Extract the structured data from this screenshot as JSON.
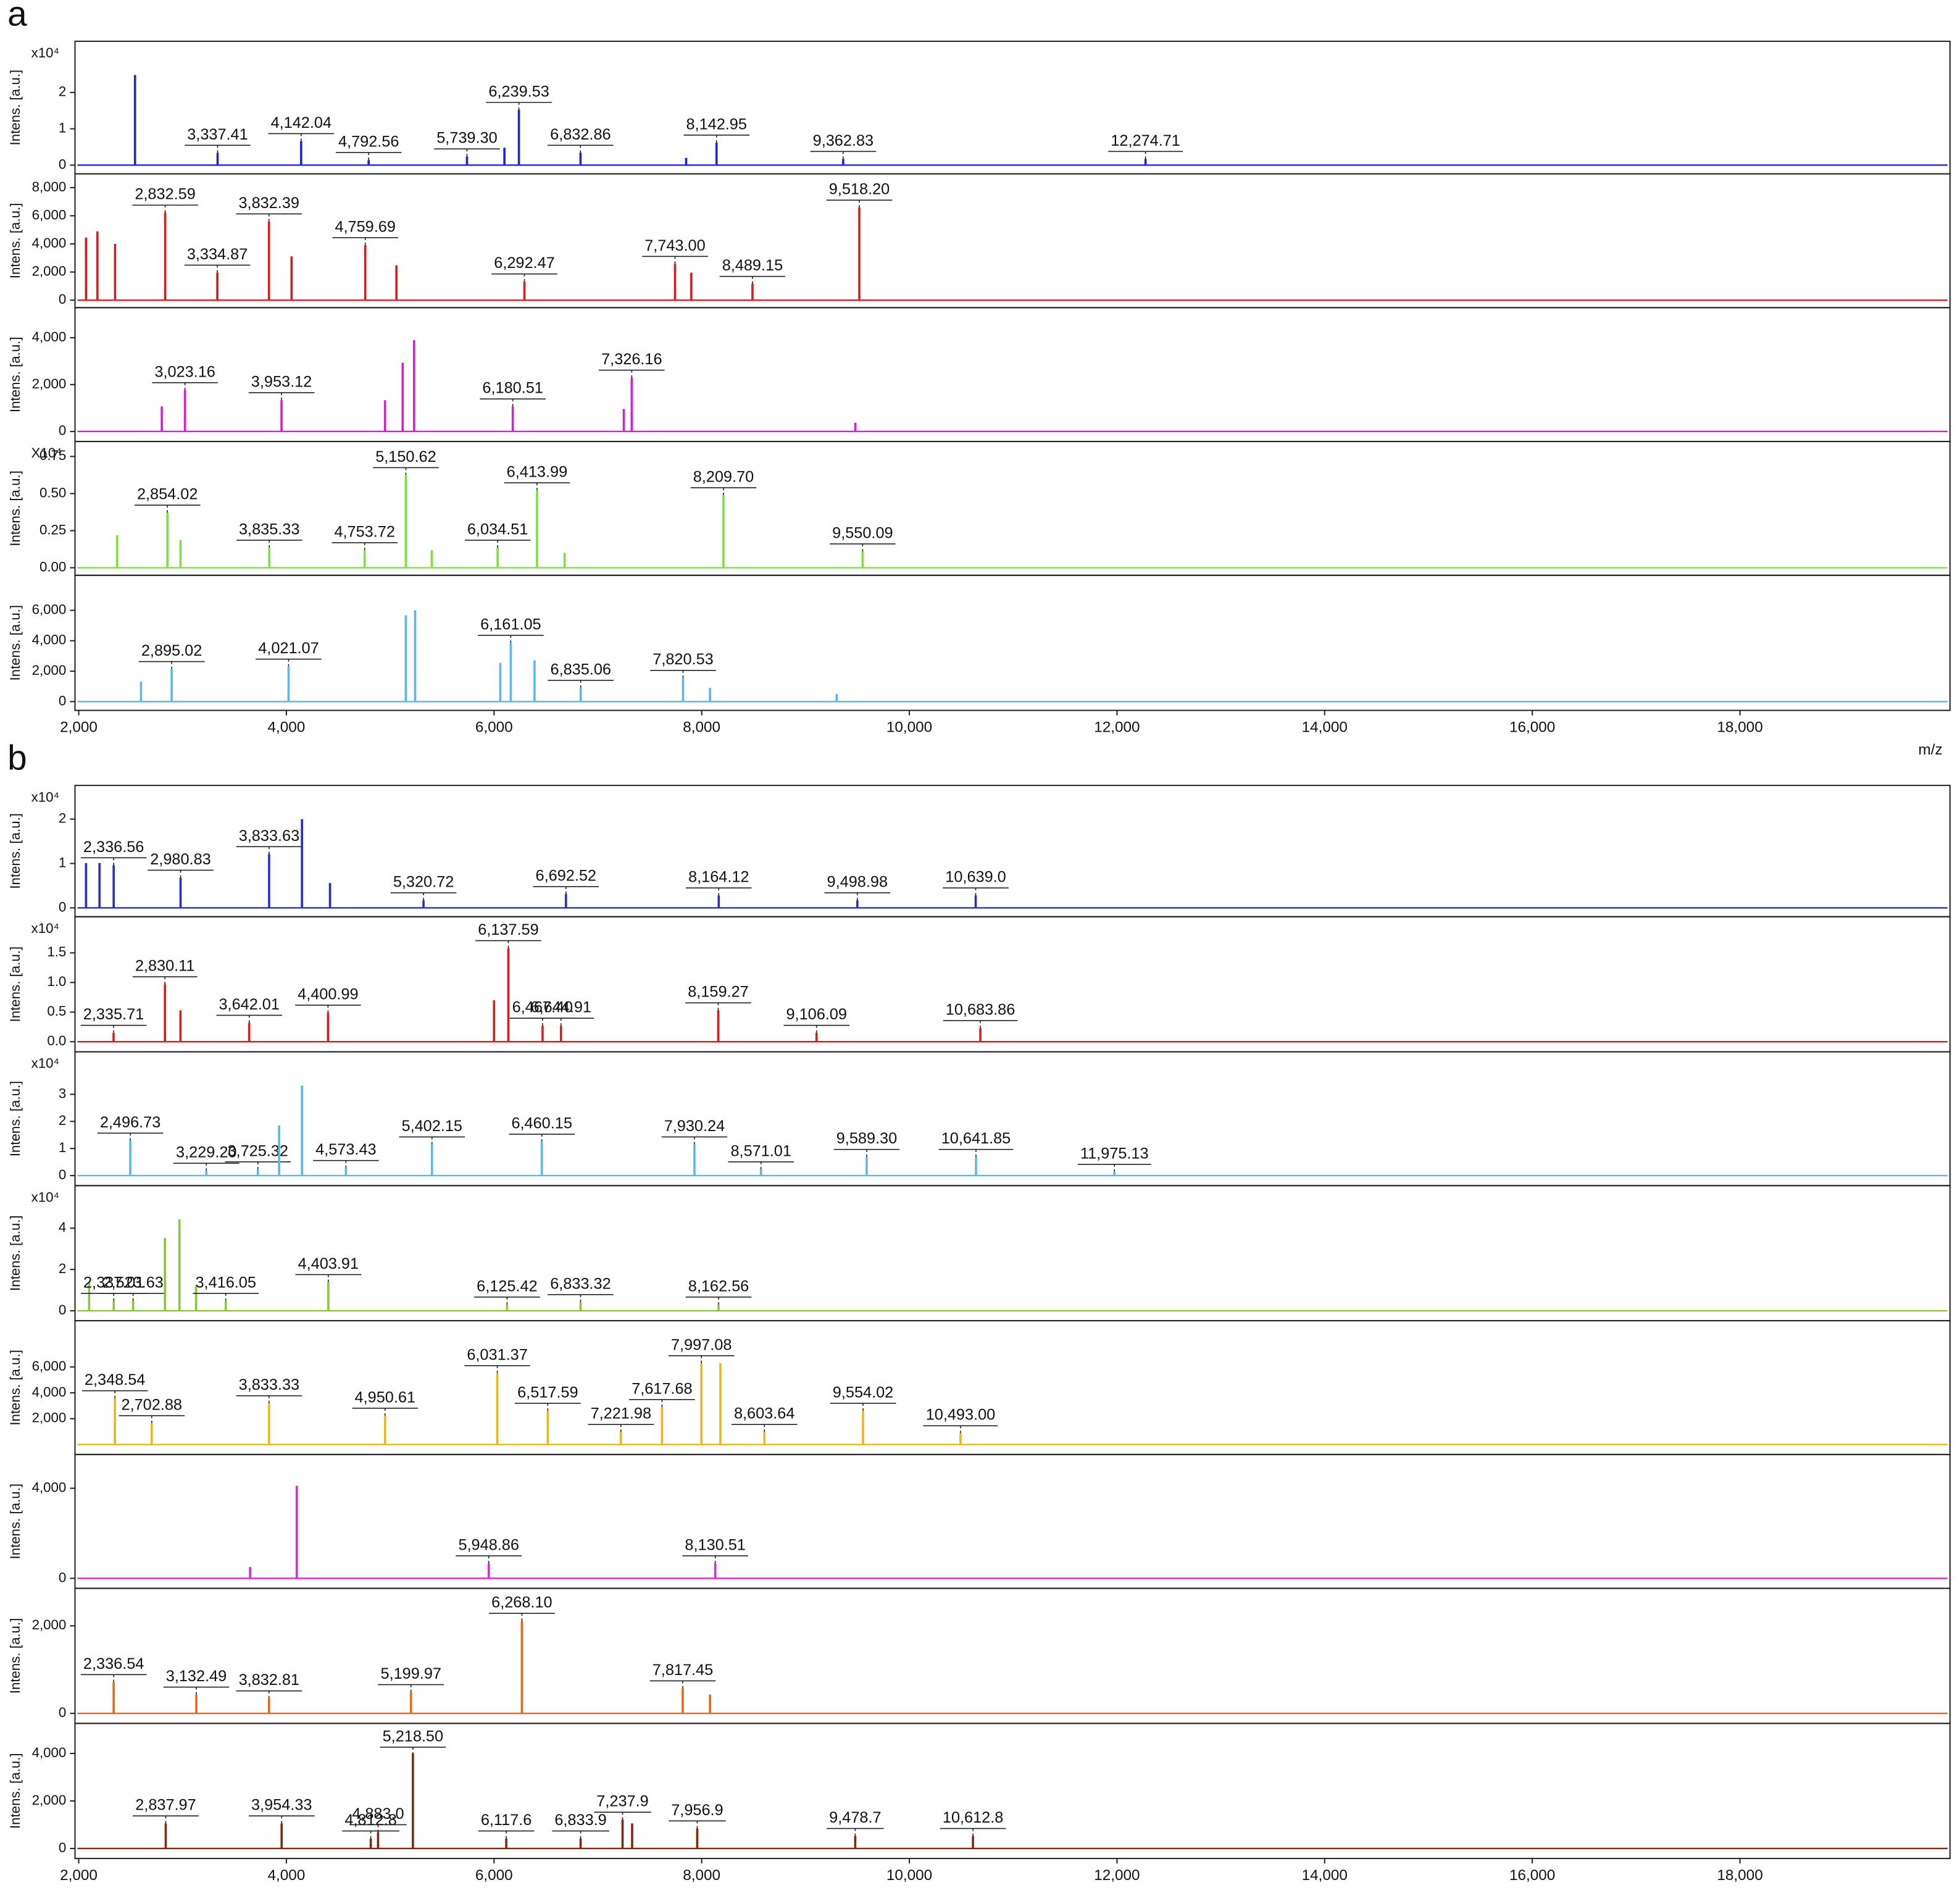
{
  "chart_data": [
    {
      "type": "spectrum",
      "panel_label": "a",
      "y_label": "Intens. [a.u.]",
      "y_multiplier": "x10⁴",
      "color": "#2323d2",
      "xlim": [
        1964,
        20023
      ],
      "ylim": [
        -0.24,
        3.41
      ],
      "yticks": [
        0,
        1,
        2
      ],
      "x": [
        2542,
        3337.41,
        4142.04,
        4792.56,
        5739.3,
        6100,
        6239.53,
        6832.86,
        7850,
        8142.95,
        9362.83,
        12274.71
      ],
      "values": [
        2.48,
        0.34,
        0.66,
        0.14,
        0.24,
        0.48,
        1.52,
        0.34,
        0.2,
        0.62,
        0.17,
        0.17
      ],
      "labels": [
        null,
        "3,337.41",
        "4,142.04",
        "4,792.56",
        "5,739.30",
        null,
        "6,239.53",
        "6,832.86",
        null,
        "8,142.95",
        "9,362.83",
        "12,274.71"
      ]
    },
    {
      "type": "spectrum",
      "y_label": "Intens. [a.u.]",
      "color": "#d31f1f",
      "xlim": [
        1964,
        20023
      ],
      "ylim": [
        -533,
        8980
      ],
      "yticks": [
        0,
        {
          "value": 2000,
          "label": "2,000"
        },
        {
          "value": 4000,
          "label": "4,000"
        },
        {
          "value": 6000,
          "label": "6,000"
        },
        {
          "value": 8000,
          "label": "8,000"
        }
      ],
      "x": [
        2070,
        2180,
        2350,
        2832.59,
        3334.87,
        3832.39,
        4050,
        4759.69,
        5060,
        6292.47,
        7743.0,
        7900,
        8489.15,
        9518.2
      ],
      "values": [
        4444,
        4889,
        4000,
        6222,
        1956,
        5600,
        3111,
        3911,
        2489,
        1333,
        2578,
        1956,
        1156,
        6578
      ],
      "labels": [
        null,
        null,
        null,
        "2,832.59",
        "3,334.87",
        "3,832.39",
        null,
        "4,759.69",
        null,
        "6,292.47",
        "7,743.00",
        null,
        "8,489.15",
        "9,518.20"
      ]
    },
    {
      "type": "spectrum",
      "y_label": "Intens. [a.u.]",
      "color": "#d420d4",
      "xlim": [
        1964,
        20023
      ],
      "ylim": [
        -427,
        5280
      ],
      "yticks": [
        0,
        {
          "value": 2000,
          "label": "2,000"
        },
        {
          "value": 4000,
          "label": "4,000"
        }
      ],
      "x": [
        2800,
        3023.16,
        3953.12,
        4950,
        5120,
        5230,
        6180.51,
        7250,
        7326.16,
        9480
      ],
      "values": [
        1067,
        1760,
        1333,
        1333,
        2933,
        3893,
        1067,
        960,
        2293,
        373
      ],
      "labels": [
        null,
        "3,023.16",
        "3,953.12",
        null,
        null,
        null,
        "6,180.51",
        null,
        "7,326.16",
        null
      ]
    },
    {
      "type": "spectrum",
      "y_label": "Intens. [a.u.]",
      "y_multiplier": "X10⁴",
      "color": "#7fe043",
      "xlim": [
        1964,
        20023
      ],
      "ylim": [
        -0.051,
        0.851
      ],
      "yticks": [
        {
          "value": 0,
          "label": "0.00"
        },
        0.25,
        {
          "value": 0.5,
          "label": "0.50"
        },
        0.75
      ],
      "x": [
        2370,
        2854.02,
        2980,
        3835.33,
        4753.72,
        5150.62,
        5400,
        6034.51,
        6413.99,
        6680,
        8209.7,
        9550.09
      ],
      "values": [
        0.219,
        0.371,
        0.185,
        0.135,
        0.118,
        0.624,
        0.118,
        0.135,
        0.522,
        0.101,
        0.489,
        0.11
      ],
      "labels": [
        null,
        "2,854.02",
        null,
        "3,835.33",
        "4,753.72",
        "5,150.62",
        null,
        "6,034.51",
        "6,413.99",
        null,
        "8,209.70",
        "9,550.09"
      ]
    },
    {
      "type": "spectrum",
      "y_label": "Intens. [a.u.]",
      "color": "#5bb9ea",
      "xlim": [
        1964,
        20023
      ],
      "ylim": [
        -575,
        8300
      ],
      "yticks": [
        0,
        {
          "value": 2000,
          "label": "2,000"
        },
        {
          "value": 4000,
          "label": "4,000"
        },
        {
          "value": 6000,
          "label": "6,000"
        }
      ],
      "xticks": [
        {
          "value": 2000,
          "label": "2,000"
        },
        {
          "value": 4000,
          "label": "4,000"
        },
        {
          "value": 6000,
          "label": "6,000"
        },
        {
          "value": 8000,
          "label": "8,000"
        },
        {
          "value": 10000,
          "label": "10,000"
        },
        {
          "value": 12000,
          "label": "12,000"
        },
        {
          "value": 14000,
          "label": "14,000"
        },
        {
          "value": 16000,
          "label": "16,000"
        },
        {
          "value": 18000,
          "label": "18,000"
        }
      ],
      "x_label": "m/z",
      "x": [
        2600,
        2895.02,
        4021.07,
        5150,
        5240,
        6060,
        6161.05,
        6390,
        6835.06,
        7820.53,
        8080,
        9300
      ],
      "values": [
        1315,
        2137,
        2301,
        5671,
        6000,
        2548,
        3863,
        2712,
        904,
        1561,
        904,
        493
      ],
      "labels": [
        null,
        "2,895.02",
        "4,021.07",
        null,
        null,
        null,
        "6,161.05",
        null,
        "6,835.06",
        "7,820.53",
        null,
        null
      ]
    },
    {
      "type": "spectrum",
      "panel_label": "b",
      "y_label": "Intens. [a.u.]",
      "y_multiplier": "x10⁴",
      "color": "#2b2bd2",
      "xlim": [
        1964,
        20023
      ],
      "ylim": [
        -0.2,
        2.76
      ],
      "yticks": [
        0,
        1,
        2
      ],
      "x": [
        2070,
        2200,
        2336.56,
        2980.83,
        3833.63,
        4150,
        4420,
        5320.72,
        6692.52,
        8164.12,
        9498.98,
        10639.0
      ],
      "values": [
        1.01,
        1.01,
        0.96,
        0.68,
        1.21,
        2.0,
        0.56,
        0.17,
        0.31,
        0.28,
        0.17,
        0.28
      ],
      "labels": [
        null,
        null,
        "2,336.56",
        "2,980.83",
        "3,833.63",
        null,
        null,
        "5,320.72",
        "6,692.52",
        "8,164.12",
        "9,498.98",
        "10,639.0"
      ]
    },
    {
      "type": "spectrum",
      "y_label": "Intens. [a.u.]",
      "y_multiplier": "x10⁴",
      "color": "#d52020",
      "xlim": [
        1964,
        20023
      ],
      "ylim": [
        -0.17,
        2.11
      ],
      "yticks": [
        {
          "value": 0,
          "label": "0.0"
        },
        0.5,
        {
          "value": 1,
          "label": "1.0"
        },
        1.5
      ],
      "x": [
        2335.71,
        2830.11,
        2980,
        3642.01,
        4400.99,
        6000,
        6137.59,
        6467.4,
        6644.91,
        8159.27,
        9106.09,
        10683.86
      ],
      "values": [
        0.15,
        0.97,
        0.53,
        0.32,
        0.49,
        0.7,
        1.58,
        0.27,
        0.27,
        0.53,
        0.15,
        0.23
      ],
      "labels": [
        "2,335.71",
        "2,830.11",
        null,
        "3,642.01",
        "4,400.99",
        null,
        "6,137.59",
        "6,467.40",
        "6,644.91",
        "8,159.27",
        "9,106.09",
        "10,683.86"
      ]
    },
    {
      "type": "spectrum",
      "y_label": "Intens. [a.u.]",
      "y_multiplier": "x10⁴",
      "color": "#5bb9ea",
      "xlim": [
        1964,
        20023
      ],
      "ylim": [
        -0.37,
        4.57
      ],
      "yticks": [
        0,
        1,
        2,
        3
      ],
      "x": [
        2496.73,
        3229.2,
        3725.32,
        3930,
        4150,
        4573.43,
        5402.15,
        6460.15,
        7930.24,
        8571.01,
        9589.3,
        10641.85,
        11975.13
      ],
      "values": [
        1.29,
        0.18,
        0.23,
        1.85,
        3.32,
        0.28,
        1.15,
        1.25,
        1.15,
        0.23,
        0.69,
        0.69,
        0.14
      ],
      "labels": [
        "2,496.73",
        "3,229.20",
        "3,725.32",
        null,
        null,
        "4,573.43",
        "5,402.15",
        "6,460.15",
        "7,930.24",
        "8,571.01",
        "9,589.30",
        "10,641.85",
        "11,975.13"
      ]
    },
    {
      "type": "spectrum",
      "y_label": "Intens. [a.u.]",
      "y_multiplier": "x10⁴",
      "color": "#8cc53b",
      "xlim": [
        1964,
        20023
      ],
      "ylim": [
        -0.48,
        6.06
      ],
      "yticks": [
        0,
        2,
        4
      ],
      "x": [
        2100,
        2337.01,
        2523.63,
        2830,
        2970,
        3130,
        3416.05,
        4403.91,
        6125.42,
        6833.32,
        8162.56
      ],
      "values": [
        1.39,
        0.48,
        0.48,
        3.52,
        4.42,
        1.21,
        0.48,
        1.39,
        0.3,
        0.42,
        0.3
      ],
      "labels": [
        null,
        "2,337.01",
        "2,523.63",
        null,
        null,
        null,
        "3,416.05",
        "4,403.91",
        "6,125.42",
        "6,833.32",
        "8,162.56"
      ]
    },
    {
      "type": "spectrum",
      "y_label": "Intens. [a.u.]",
      "color": "#e8b91f",
      "xlim": [
        1964,
        20023
      ],
      "ylim": [
        -774,
        9580
      ],
      "yticks": [
        {
          "value": 2000,
          "label": "2,000"
        },
        {
          "value": 4000,
          "label": "4,000"
        },
        {
          "value": 6000,
          "label": "6,000"
        }
      ],
      "x": [
        2348.54,
        2702.88,
        3833.33,
        4950.61,
        6031.37,
        6517.59,
        7221.98,
        7617.68,
        7997.08,
        8180,
        8603.64,
        9554.02,
        10493.0
      ],
      "values": [
        3580,
        1650,
        3190,
        2230,
        5520,
        2610,
        970,
        2900,
        6290,
        6290,
        970,
        2610,
        870
      ],
      "labels": [
        "2,348.54",
        "2,702.88",
        "3,833.33",
        "4,950.61",
        "6,031.37",
        "6,517.59",
        "7,221.98",
        "7,617.68",
        "7,997.08",
        null,
        "8,603.64",
        "9,554.02",
        "10,493.00"
      ]
    },
    {
      "type": "spectrum",
      "y_label": "Intens. [a.u.]",
      "color": "#d92bd9",
      "xlim": [
        1964,
        20023
      ],
      "ylim": [
        -444,
        5500
      ],
      "yticks": [
        0,
        {
          "value": 4000,
          "label": "4,000"
        }
      ],
      "x": [
        3650,
        4100,
        5948.86,
        8130.51
      ],
      "values": [
        500,
        4110,
        667,
        667
      ],
      "labels": [
        null,
        null,
        "5,948.86",
        "8,130.51"
      ]
    },
    {
      "type": "spectrum",
      "y_label": "Intens. [a.u.]",
      "color": "#e06a1f",
      "xlim": [
        1964,
        20023
      ],
      "ylim": [
        -229,
        2857
      ],
      "yticks": [
        0,
        {
          "value": 2000,
          "label": "2,000"
        }
      ],
      "x": [
        2336.54,
        3132.49,
        3832.81,
        5199.97,
        6268.1,
        7817.45,
        8080
      ],
      "values": [
        714,
        429,
        343,
        486,
        2114,
        571,
        429
      ],
      "labels": [
        "2,336.54",
        "3,132.49",
        "3,832.81",
        "5,199.97",
        "6,268.10",
        "7,817.45",
        null
      ]
    },
    {
      "type": "spectrum",
      "y_label": "Intens. [a.u.]",
      "color": "#7b2b11",
      "xlim": [
        1964,
        20023
      ],
      "ylim": [
        -421,
        5263
      ],
      "yticks": [
        0,
        {
          "value": 2000,
          "label": "2,000"
        },
        {
          "value": 4000,
          "label": "4,000"
        }
      ],
      "xticks": [
        {
          "value": 2000,
          "label": "2,000"
        },
        {
          "value": 4000,
          "label": "4,000"
        },
        {
          "value": 6000,
          "label": "6,000"
        },
        {
          "value": 8000,
          "label": "8,000"
        },
        {
          "value": 10000,
          "label": "10,000"
        },
        {
          "value": 12000,
          "label": "12,000"
        },
        {
          "value": 14000,
          "label": "14,000"
        },
        {
          "value": 16000,
          "label": "16,000"
        },
        {
          "value": 18000,
          "label": "18,000"
        }
      ],
      "x": [
        2837.97,
        3954.33,
        4812.8,
        4883.0,
        5218.5,
        6117.6,
        6833.9,
        7237.9,
        7330,
        7956.9,
        9478.7,
        10612.8
      ],
      "values": [
        1053,
        1053,
        421,
        684,
        4000,
        421,
        421,
        1211,
        1053,
        842,
        526,
        526
      ],
      "labels": [
        "2,837.97",
        "3,954.33",
        "4,812.8",
        "4,883.0",
        "5,218.50",
        "6,117.6",
        "6,833.9",
        "7,237.9",
        null,
        "7,956.9",
        "9,478.7",
        "10,612.8"
      ]
    }
  ]
}
